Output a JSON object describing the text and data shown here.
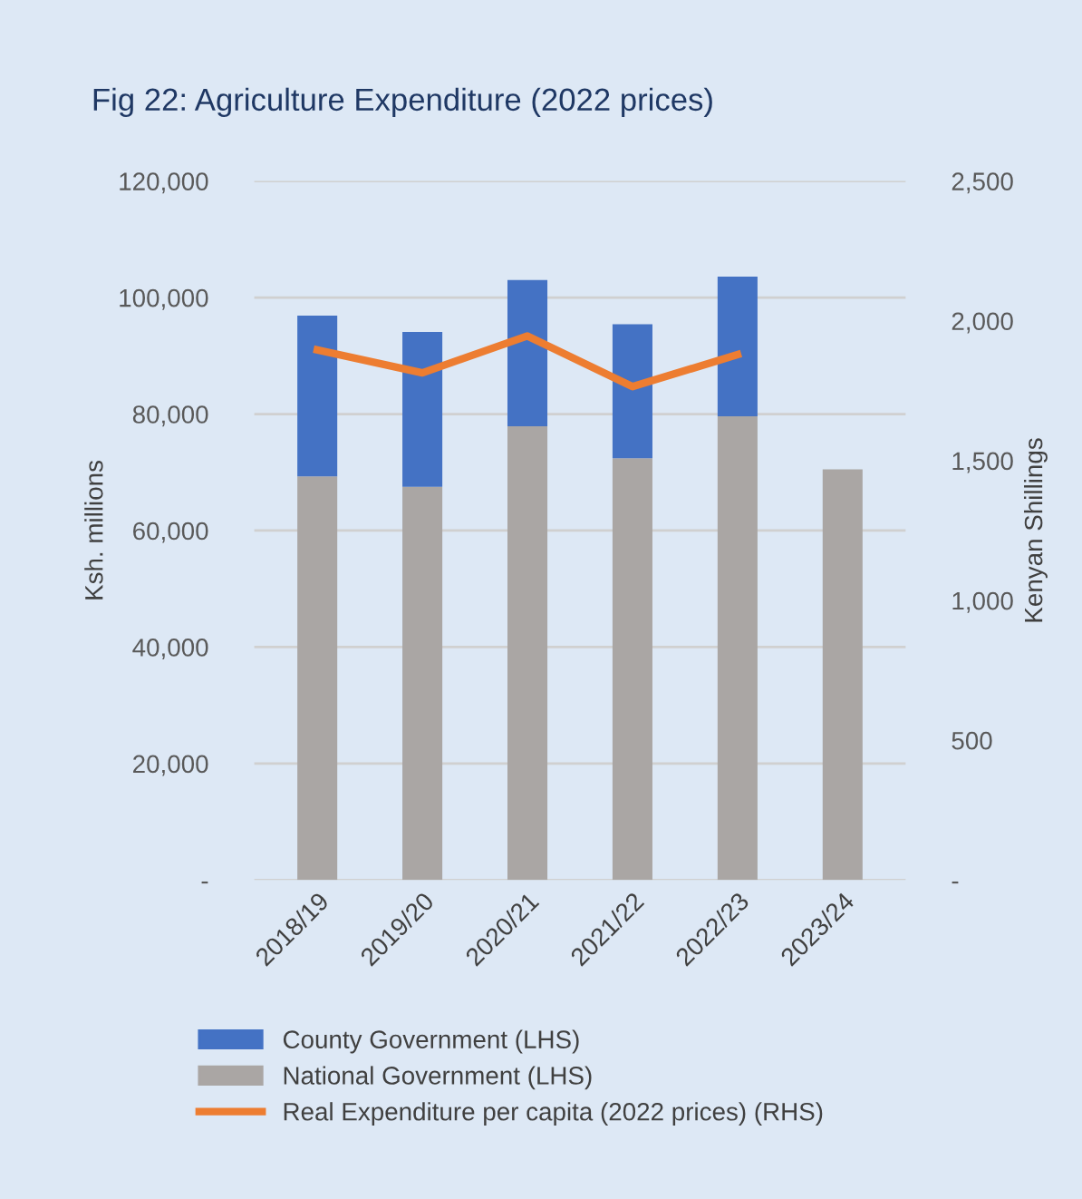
{
  "chart_data": {
    "type": "bar",
    "title": "Fig 22: Agriculture Expenditure (2022 prices)",
    "ylabel": "Ksh. millions",
    "y2label": "Kenyan Shillings",
    "categories": [
      "2018/19",
      "2019/20",
      "2020/21",
      "2021/22",
      "2022/23",
      "2023/24"
    ],
    "stacked": true,
    "series": [
      {
        "name": "National Government (LHS)",
        "color": "#aaa6a4",
        "values": [
          69300,
          67500,
          77900,
          72400,
          79600,
          70500
        ]
      },
      {
        "name": "County Government (LHS)",
        "color": "#4472c4",
        "values": [
          27600,
          26600,
          25100,
          23000,
          24000,
          null
        ]
      },
      {
        "name": "Real Expenditure per capita (2022 prices) (RHS)",
        "type": "line",
        "axis": "y2",
        "color": "#ed7d31",
        "values": [
          1896,
          1814,
          1946,
          1765,
          1879,
          null
        ]
      }
    ],
    "ylim": [
      0,
      120000
    ],
    "yticks": [
      {
        "value": 0,
        "label": "-"
      },
      {
        "value": 20000,
        "label": "20,000"
      },
      {
        "value": 40000,
        "label": "40,000"
      },
      {
        "value": 60000,
        "label": "60,000"
      },
      {
        "value": 80000,
        "label": "80,000"
      },
      {
        "value": 100000,
        "label": "100,000"
      },
      {
        "value": 120000,
        "label": "120,000"
      }
    ],
    "y2lim": [
      0,
      2500
    ],
    "y2ticks": [
      {
        "value": 0,
        "label": "-"
      },
      500,
      {
        "value": 1000,
        "label": "1,000"
      },
      {
        "value": 1500,
        "label": "1,500"
      },
      {
        "value": 2000,
        "label": "2,000"
      },
      {
        "value": 2500,
        "label": "2,500"
      }
    ],
    "grid": "y",
    "legend": "bottom",
    "marker": "none"
  }
}
